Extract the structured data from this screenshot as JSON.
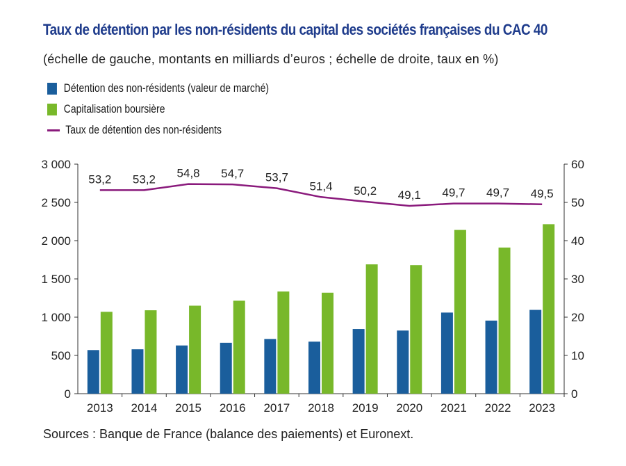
{
  "title": "Taux de détention par les non-résidents du capital des sociétés françaises du CAC 40",
  "subtitle": "(échelle de gauche, montants en milliards d’euros ; échelle de droite, taux en %)",
  "source": "Sources : Banque de France (balance des paiements) et Euronext.",
  "legend": [
    {
      "label": "Détention des non-résidents (valeur de marché)",
      "color": "#1a5e9c",
      "kind": "bar"
    },
    {
      "label": "Capitalisation boursière",
      "color": "#78b82a",
      "kind": "bar"
    },
    {
      "label": "Taux de détention des non-résidents",
      "color": "#8a1a7c",
      "kind": "line"
    }
  ],
  "chart_data": {
    "type": "bar",
    "categories": [
      "2013",
      "2014",
      "2015",
      "2016",
      "2017",
      "2018",
      "2019",
      "2020",
      "2021",
      "2022",
      "2023"
    ],
    "series": [
      {
        "name": "Détention des non-résidents (valeur de marché)",
        "axis": "left",
        "type": "bar",
        "color": "#1a5e9c",
        "values": [
          570,
          580,
          630,
          665,
          715,
          680,
          845,
          825,
          1060,
          955,
          1095
        ]
      },
      {
        "name": "Capitalisation boursière",
        "axis": "left",
        "type": "bar",
        "color": "#78b82a",
        "values": [
          1070,
          1090,
          1150,
          1215,
          1335,
          1320,
          1690,
          1680,
          2140,
          1910,
          2215
        ]
      },
      {
        "name": "Taux de détention des non-résidents",
        "axis": "right",
        "type": "line",
        "color": "#8a1a7c",
        "values": [
          53.2,
          53.2,
          54.8,
          54.7,
          53.7,
          51.4,
          50.2,
          49.1,
          49.7,
          49.7,
          49.5
        ],
        "labels": [
          "53,2",
          "53,2",
          "54,8",
          "54,7",
          "53,7",
          "51,4",
          "50,2",
          "49,1",
          "49,7",
          "49,7",
          "49,5"
        ]
      }
    ],
    "y_left": {
      "min": 0,
      "max": 3000,
      "ticks": [
        0,
        500,
        1000,
        1500,
        2000,
        2500,
        3000
      ],
      "tick_labels": [
        "0",
        "500",
        "1 000",
        "1 500",
        "2 000",
        "2 500",
        "3 000"
      ]
    },
    "y_right": {
      "min": 0,
      "max": 60,
      "ticks": [
        0,
        10,
        20,
        30,
        40,
        50,
        60
      ],
      "tick_labels": [
        "0",
        "10",
        "20",
        "30",
        "40",
        "50",
        "60"
      ]
    },
    "grid": false,
    "legend_position": "top-left"
  }
}
